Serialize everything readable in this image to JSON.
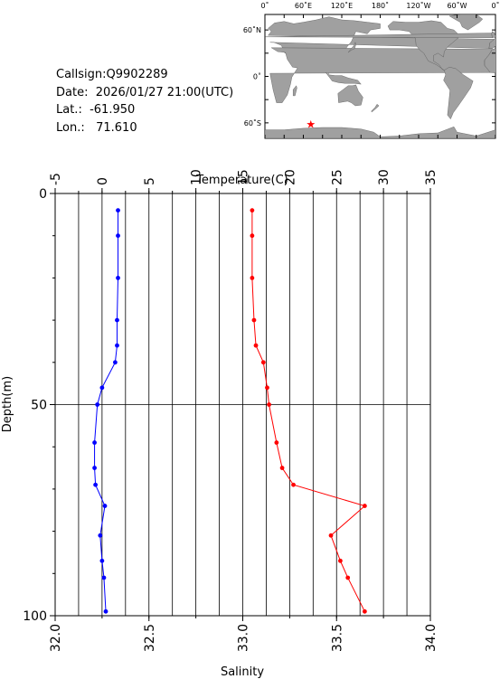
{
  "station": {
    "callsign_line": "Callsign:Q9902289",
    "date_line": "Date:  2026/01/27 21:00(UTC)",
    "lat_line": "Lat.:  -61.950",
    "lon_line": "Lon.:   71.610"
  },
  "map": {
    "top_labels": [
      "0˚",
      "60˚E",
      "120˚E",
      "180˚",
      "120˚W",
      "60˚W",
      "0˚"
    ],
    "lat_labels": [
      "60˚N",
      "0˚",
      "60˚S"
    ],
    "station_lon": 71.61,
    "station_lat": -61.95,
    "land_color": "#a0a0a0",
    "ocean_color": "#ffffff",
    "marker_color": "#ff0000"
  },
  "chart_data": {
    "type": "line",
    "title": "",
    "top_axis": {
      "label": "Temperature(C)",
      "range": [
        -5,
        35
      ],
      "ticks": [
        "-5",
        "0",
        "5",
        "10",
        "15",
        "20",
        "25",
        "30",
        "35"
      ]
    },
    "bottom_axis": {
      "label": "Salinity",
      "range": [
        32.0,
        34.0
      ],
      "ticks": [
        "32.0",
        "32.5",
        "33.0",
        "33.5",
        "34.0"
      ]
    },
    "left_axis": {
      "label": "Depth(m)",
      "range": [
        0,
        100
      ],
      "ticks": [
        "0",
        "50",
        "100"
      ],
      "inverted": true
    },
    "series": [
      {
        "color": "#0000ff",
        "axis": "temperature",
        "points": [
          [
            1.7,
            4
          ],
          [
            1.7,
            10
          ],
          [
            1.7,
            20
          ],
          [
            1.6,
            30
          ],
          [
            1.6,
            36
          ],
          [
            1.4,
            40
          ],
          [
            0.0,
            46
          ],
          [
            -0.5,
            50
          ],
          [
            -0.8,
            59
          ],
          [
            -0.8,
            65
          ],
          [
            -0.7,
            69
          ],
          [
            0.3,
            74
          ],
          [
            -0.2,
            81
          ],
          [
            0.0,
            87
          ],
          [
            0.2,
            91
          ],
          [
            0.4,
            99
          ]
        ]
      },
      {
        "color": "#ff0000",
        "axis": "salinity",
        "points": [
          [
            33.05,
            4
          ],
          [
            33.05,
            10
          ],
          [
            33.05,
            20
          ],
          [
            33.06,
            30
          ],
          [
            33.07,
            36
          ],
          [
            33.11,
            40
          ],
          [
            33.13,
            46
          ],
          [
            33.14,
            50
          ],
          [
            33.18,
            59
          ],
          [
            33.21,
            65
          ],
          [
            33.27,
            69
          ],
          [
            33.65,
            74
          ],
          [
            33.47,
            81
          ],
          [
            33.52,
            87
          ],
          [
            33.56,
            91
          ],
          [
            33.65,
            99
          ]
        ]
      }
    ],
    "vertical_grid": true,
    "horizontal_grid_at": [
      50
    ]
  }
}
